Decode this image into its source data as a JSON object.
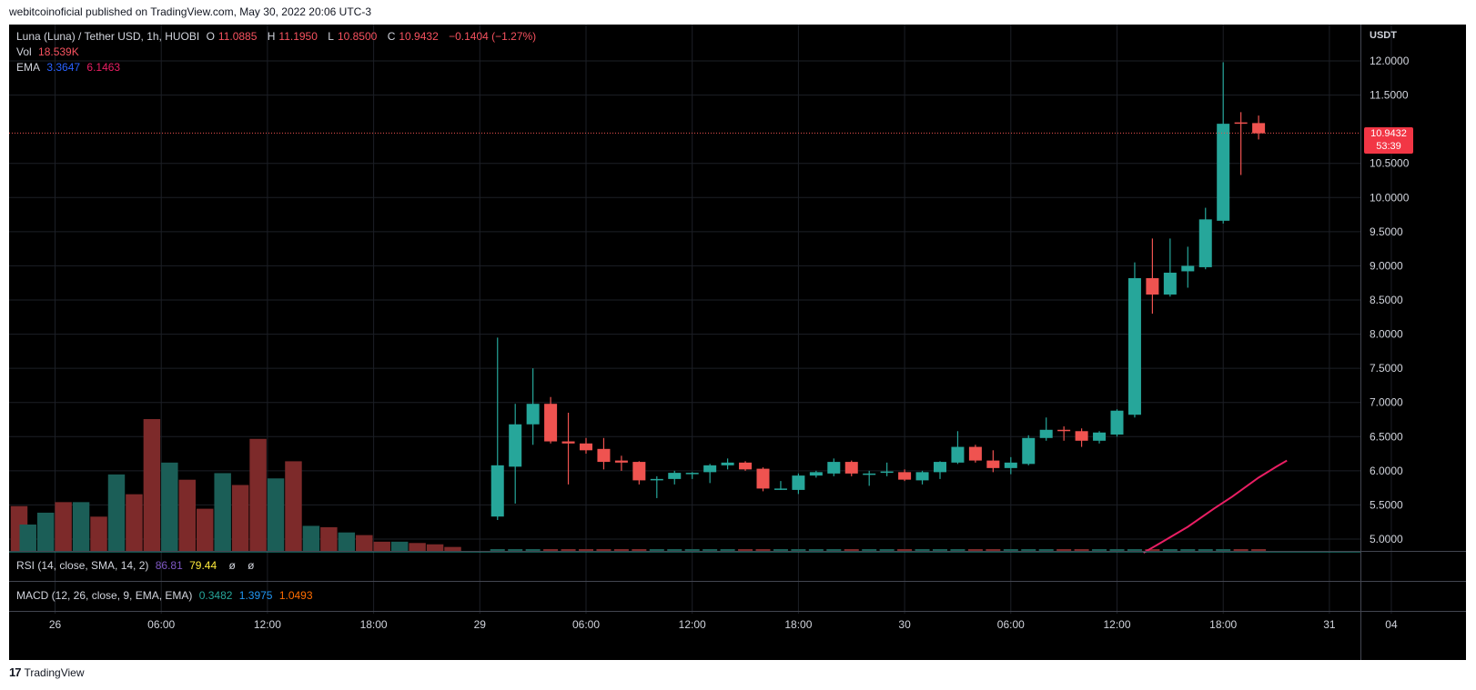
{
  "header": {
    "publish_text": "webitcoinoficial published on TradingView.com, May 30, 2022 20:06 UTC-3"
  },
  "legend": {
    "symbol": "Luna  (Luna)  / Tether USD, 1h, HUOBI",
    "open_label": "O",
    "open": "11.0885",
    "high_label": "H",
    "high": "11.1950",
    "low_label": "L",
    "low": "10.8500",
    "close_label": "C",
    "close": "10.9432",
    "change": "−0.1404 (−1.27%)",
    "vol_label": "Vol",
    "vol": "18.539K",
    "ema_label": "EMA",
    "ema1": "3.3647",
    "ema2": "6.1463"
  },
  "indicators": {
    "rsi_label": "RSI (14, close, SMA, 14, 2)",
    "rsi_value": "86.81",
    "rsi_ma": "79.44",
    "rsi_sym1": "ø",
    "rsi_sym2": "ø",
    "macd_label": "MACD (12, 26, close, 9, EMA, EMA)",
    "macd_value": "0.3482",
    "macd_signal": "1.3975",
    "macd_hist": "1.0493"
  },
  "price_axis": {
    "currency": "USDT",
    "current_price": "10.9432",
    "countdown": "53:39"
  },
  "footer": {
    "logo_mark": "17",
    "brand": "TradingView"
  },
  "colors": {
    "up": "#26a69a",
    "down": "#ef5350",
    "vol_up": "#1b5e57",
    "vol_down": "#7d2a2a",
    "ema": "#e91e63",
    "grid": "#1c1f26"
  },
  "chart_data": {
    "type": "candlestick",
    "ylim": [
      4.8,
      12.4
    ],
    "y_ticks": [
      "5.0000",
      "5.5000",
      "6.0000",
      "6.5000",
      "7.0000",
      "7.5000",
      "8.0000",
      "8.5000",
      "9.0000",
      "9.5000",
      "10.0000",
      "10.5000",
      "11.5000",
      "12.0000"
    ],
    "x_ticks": [
      {
        "label": "26",
        "bar": 0
      },
      {
        "label": "06:00",
        "bar": 6
      },
      {
        "label": "12:00",
        "bar": 12
      },
      {
        "label": "18:00",
        "bar": 18
      },
      {
        "label": "29",
        "bar": 24
      },
      {
        "label": "06:00",
        "bar": 30
      },
      {
        "label": "12:00",
        "bar": 36
      },
      {
        "label": "18:00",
        "bar": 42
      },
      {
        "label": "30",
        "bar": 48
      },
      {
        "label": "06:00",
        "bar": 54
      },
      {
        "label": "12:00",
        "bar": 60
      },
      {
        "label": "18:00",
        "bar": 66
      },
      {
        "label": "31",
        "bar": 72
      },
      {
        "label": "04",
        "bar": 75.5
      }
    ],
    "candles_start_bar": 25,
    "candles": [
      {
        "o": 5.33,
        "h": 7.95,
        "l": 5.28,
        "c": 6.08
      },
      {
        "o": 6.06,
        "h": 6.98,
        "l": 5.52,
        "c": 6.68
      },
      {
        "o": 6.68,
        "h": 7.5,
        "l": 6.38,
        "c": 6.98
      },
      {
        "o": 6.98,
        "h": 7.08,
        "l": 6.4,
        "c": 6.43
      },
      {
        "o": 6.43,
        "h": 6.85,
        "l": 5.8,
        "c": 6.4
      },
      {
        "o": 6.4,
        "h": 6.48,
        "l": 6.25,
        "c": 6.3
      },
      {
        "o": 6.32,
        "h": 6.48,
        "l": 6.02,
        "c": 6.13
      },
      {
        "o": 6.15,
        "h": 6.22,
        "l": 6.0,
        "c": 6.12
      },
      {
        "o": 6.13,
        "h": 6.14,
        "l": 5.8,
        "c": 5.86
      },
      {
        "o": 5.86,
        "h": 5.92,
        "l": 5.6,
        "c": 5.88
      },
      {
        "o": 5.88,
        "h": 6.0,
        "l": 5.8,
        "c": 5.97
      },
      {
        "o": 5.95,
        "h": 5.98,
        "l": 5.88,
        "c": 5.97
      },
      {
        "o": 5.98,
        "h": 6.1,
        "l": 5.82,
        "c": 6.08
      },
      {
        "o": 6.08,
        "h": 6.18,
        "l": 6.02,
        "c": 6.12
      },
      {
        "o": 6.12,
        "h": 6.14,
        "l": 6.0,
        "c": 6.02
      },
      {
        "o": 6.03,
        "h": 6.05,
        "l": 5.7,
        "c": 5.74
      },
      {
        "o": 5.73,
        "h": 5.85,
        "l": 5.72,
        "c": 5.74
      },
      {
        "o": 5.72,
        "h": 5.96,
        "l": 5.66,
        "c": 5.93
      },
      {
        "o": 5.93,
        "h": 6.0,
        "l": 5.9,
        "c": 5.98
      },
      {
        "o": 5.96,
        "h": 6.18,
        "l": 5.92,
        "c": 6.13
      },
      {
        "o": 6.13,
        "h": 6.15,
        "l": 5.92,
        "c": 5.96
      },
      {
        "o": 5.96,
        "h": 6.0,
        "l": 5.78,
        "c": 5.96
      },
      {
        "o": 5.97,
        "h": 6.12,
        "l": 5.92,
        "c": 5.99
      },
      {
        "o": 5.98,
        "h": 6.02,
        "l": 5.85,
        "c": 5.87
      },
      {
        "o": 5.86,
        "h": 6.0,
        "l": 5.8,
        "c": 5.98
      },
      {
        "o": 5.98,
        "h": 6.14,
        "l": 5.88,
        "c": 6.13
      },
      {
        "o": 6.12,
        "h": 6.58,
        "l": 6.1,
        "c": 6.35
      },
      {
        "o": 6.35,
        "h": 6.38,
        "l": 6.12,
        "c": 6.15
      },
      {
        "o": 6.15,
        "h": 6.3,
        "l": 5.98,
        "c": 6.04
      },
      {
        "o": 6.04,
        "h": 6.2,
        "l": 5.95,
        "c": 6.12
      },
      {
        "o": 6.1,
        "h": 6.52,
        "l": 6.08,
        "c": 6.48
      },
      {
        "o": 6.48,
        "h": 6.78,
        "l": 6.44,
        "c": 6.6
      },
      {
        "o": 6.6,
        "h": 6.65,
        "l": 6.44,
        "c": 6.58
      },
      {
        "o": 6.58,
        "h": 6.62,
        "l": 6.35,
        "c": 6.44
      },
      {
        "o": 6.44,
        "h": 6.58,
        "l": 6.4,
        "c": 6.56
      },
      {
        "o": 6.53,
        "h": 6.9,
        "l": 6.5,
        "c": 6.88
      },
      {
        "o": 6.82,
        "h": 9.05,
        "l": 6.78,
        "c": 8.82
      },
      {
        "o": 8.82,
        "h": 9.4,
        "l": 8.3,
        "c": 8.58
      },
      {
        "o": 8.58,
        "h": 9.4,
        "l": 8.55,
        "c": 8.9
      },
      {
        "o": 8.92,
        "h": 9.28,
        "l": 8.68,
        "c": 9.0
      },
      {
        "o": 8.98,
        "h": 9.85,
        "l": 8.95,
        "c": 9.68
      },
      {
        "o": 9.66,
        "h": 11.98,
        "l": 9.62,
        "c": 11.08
      },
      {
        "o": 11.1,
        "h": 11.25,
        "l": 10.33,
        "c": 11.08
      },
      {
        "o": 11.09,
        "h": 11.2,
        "l": 10.85,
        "c": 10.94
      }
    ],
    "volume": {
      "max": 100,
      "bars": [
        {
          "bar": 0,
          "v": 34,
          "up": false
        },
        {
          "bar": 0.5,
          "v": 20,
          "up": true
        },
        {
          "bar": 1.5,
          "v": 29,
          "up": true
        },
        {
          "bar": 2.5,
          "v": 37,
          "up": false
        },
        {
          "bar": 3.5,
          "v": 37,
          "up": true
        },
        {
          "bar": 4.5,
          "v": 26,
          "up": false
        },
        {
          "bar": 5.5,
          "v": 58,
          "up": true
        },
        {
          "bar": 6.5,
          "v": 43,
          "up": false
        },
        {
          "bar": 7.5,
          "v": 100,
          "up": false
        },
        {
          "bar": 8.5,
          "v": 67,
          "up": true
        },
        {
          "bar": 9.5,
          "v": 54,
          "up": false
        },
        {
          "bar": 10.5,
          "v": 32,
          "up": false
        },
        {
          "bar": 11.5,
          "v": 59,
          "up": true
        },
        {
          "bar": 12.5,
          "v": 50,
          "up": false
        },
        {
          "bar": 13.5,
          "v": 85,
          "up": false
        },
        {
          "bar": 14.5,
          "v": 55,
          "up": true
        },
        {
          "bar": 15.5,
          "v": 68,
          "up": false
        },
        {
          "bar": 16.5,
          "v": 19,
          "up": true
        },
        {
          "bar": 17.5,
          "v": 18,
          "up": false
        },
        {
          "bar": 18.5,
          "v": 14,
          "up": true
        },
        {
          "bar": 19.5,
          "v": 12,
          "up": false
        },
        {
          "bar": 20.5,
          "v": 7,
          "up": false
        },
        {
          "bar": 21.5,
          "v": 7,
          "up": true
        },
        {
          "bar": 22.5,
          "v": 6,
          "up": false
        },
        {
          "bar": 23.5,
          "v": 5,
          "up": false
        },
        {
          "bar": 24.5,
          "v": 3,
          "up": false
        }
      ]
    },
    "ema_line": [
      {
        "bar": 61.5,
        "y": 4.8
      },
      {
        "bar": 62.5,
        "y": 4.95
      },
      {
        "bar": 64,
        "y": 5.18
      },
      {
        "bar": 65.5,
        "y": 5.45
      },
      {
        "bar": 66.5,
        "y": 5.62
      },
      {
        "bar": 68,
        "y": 5.9
      },
      {
        "bar": 69,
        "y": 6.06
      },
      {
        "bar": 69.6,
        "y": 6.15
      }
    ],
    "current_price": 10.9432
  }
}
